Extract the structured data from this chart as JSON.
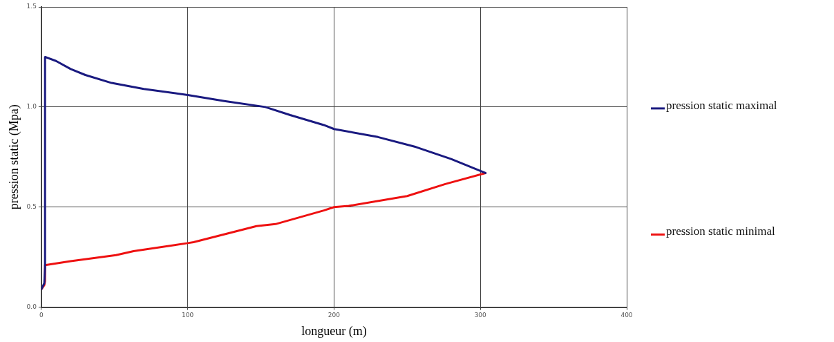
{
  "chart_data": {
    "type": "line",
    "xlabel": "longueur (m)",
    "ylabel": "pression static (Mpa)",
    "xlim": [
      0,
      400
    ],
    "xticks": [
      0,
      100,
      200,
      300,
      400
    ],
    "ylim": [
      0,
      1.5
    ],
    "yticks": [
      {
        "value": 0,
        "label": "0.0"
      },
      0.5,
      {
        "value": 1,
        "label": "1.0"
      },
      1.5
    ],
    "grid": true,
    "legend": "right",
    "marker": "none",
    "line_style": "solid",
    "series": [
      {
        "name": "pression static maximal",
        "color": "#1a1a80",
        "x": [
          0,
          2,
          2.5,
          2.5,
          10,
          20,
          30,
          48,
          70,
          100,
          125,
          153,
          170,
          193,
          200,
          230,
          256,
          280,
          303.5
        ],
        "values": [
          0.09,
          0.12,
          0.2,
          1.25,
          1.23,
          1.19,
          1.16,
          1.12,
          1.09,
          1.06,
          1.03,
          1.0,
          0.96,
          0.91,
          0.89,
          0.85,
          0.8,
          0.74,
          0.67
        ]
      },
      {
        "name": "pression static minimal",
        "color": "#ee1111",
        "x": [
          0,
          2,
          2.5,
          2.5,
          20,
          51,
          63,
          100,
          104,
          147,
          160,
          193,
          200,
          210,
          250,
          276,
          303.5
        ],
        "values": [
          0.09,
          0.11,
          0.13,
          0.21,
          0.23,
          0.26,
          0.28,
          0.32,
          0.325,
          0.405,
          0.415,
          0.483,
          0.5,
          0.506,
          0.555,
          0.615,
          0.67
        ]
      }
    ]
  }
}
